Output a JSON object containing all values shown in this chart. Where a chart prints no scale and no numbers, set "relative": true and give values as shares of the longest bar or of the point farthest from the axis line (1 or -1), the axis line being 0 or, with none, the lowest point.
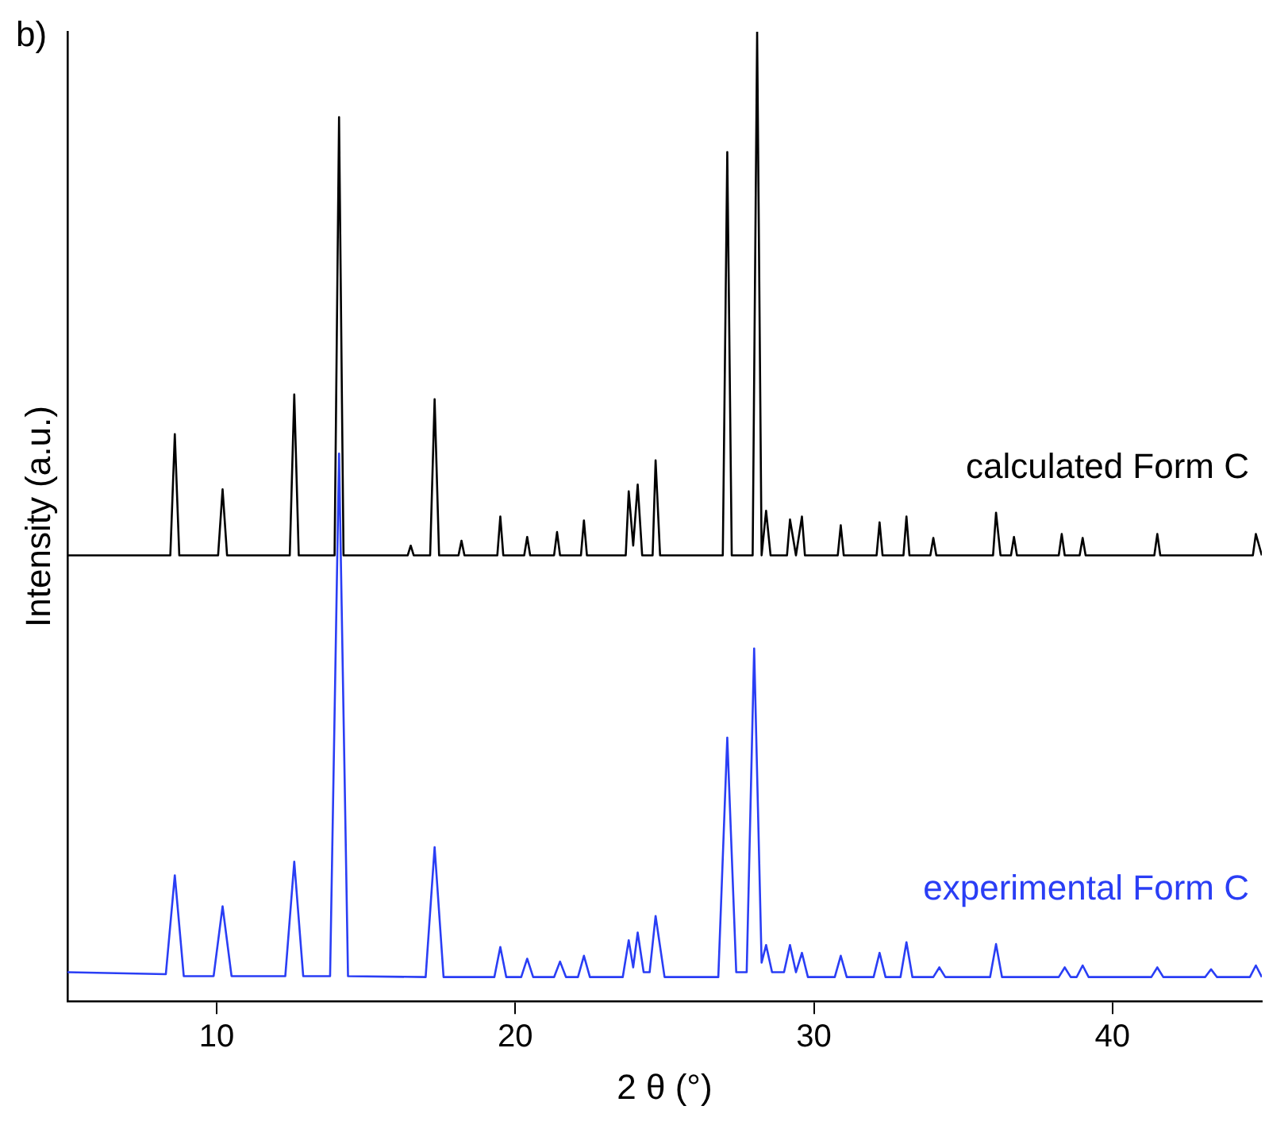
{
  "chart_data": {
    "type": "line",
    "relative": true,
    "xlabel": "2 θ (°)",
    "ylabel": "Intensity (a.u.)",
    "annotations": [
      "b)"
    ],
    "xlim": [
      5,
      45
    ],
    "xticks": [
      10,
      20,
      30,
      40
    ],
    "grid": false,
    "legend": false,
    "marker": "none",
    "line_style": "solid",
    "series": [
      {
        "name": "calculated Form C",
        "color": "#000000",
        "x": [
          5,
          8.45,
          8.6,
          8.75,
          10.05,
          10.2,
          10.35,
          12.45,
          12.6,
          12.75,
          13.95,
          14.1,
          14.25,
          16.4,
          16.5,
          16.6,
          17.15,
          17.3,
          17.45,
          18.1,
          18.2,
          18.3,
          19.4,
          19.5,
          19.6,
          20.3,
          20.4,
          20.5,
          21.3,
          21.4,
          21.5,
          22.2,
          22.3,
          22.4,
          23.7,
          23.8,
          23.95,
          24.1,
          24.25,
          24.6,
          24.7,
          24.85,
          26.95,
          27.1,
          27.25,
          27.95,
          28.1,
          28.25,
          28.4,
          28.55,
          29.1,
          29.2,
          29.4,
          29.6,
          29.7,
          30.8,
          30.9,
          31,
          32.1,
          32.2,
          32.3,
          33,
          33.1,
          33.2,
          33.9,
          34,
          34.1,
          36,
          36.1,
          36.25,
          36.6,
          36.7,
          36.8,
          38.2,
          38.3,
          38.4,
          38.9,
          39,
          39.1,
          41.4,
          41.5,
          41.6,
          44.7,
          44.8,
          45
        ],
        "values": [
          0.46,
          0.46,
          0.585,
          0.46,
          0.46,
          0.528,
          0.46,
          0.46,
          0.626,
          0.46,
          0.46,
          0.912,
          0.46,
          0.46,
          0.47,
          0.46,
          0.46,
          0.621,
          0.46,
          0.46,
          0.475,
          0.46,
          0.46,
          0.5,
          0.46,
          0.46,
          0.479,
          0.46,
          0.46,
          0.484,
          0.46,
          0.46,
          0.496,
          0.46,
          0.46,
          0.526,
          0.47,
          0.533,
          0.46,
          0.46,
          0.558,
          0.46,
          0.46,
          0.876,
          0.46,
          0.46,
          1,
          0.46,
          0.506,
          0.46,
          0.46,
          0.497,
          0.46,
          0.5,
          0.46,
          0.46,
          0.491,
          0.46,
          0.46,
          0.494,
          0.46,
          0.46,
          0.5,
          0.46,
          0.46,
          0.478,
          0.46,
          0.46,
          0.504,
          0.46,
          0.46,
          0.479,
          0.46,
          0.46,
          0.482,
          0.46,
          0.46,
          0.478,
          0.46,
          0.46,
          0.482,
          0.46,
          0.46,
          0.482,
          0.46
        ]
      },
      {
        "name": "experimental Form C",
        "color": "#2a3ef5",
        "x": [
          5,
          8.3,
          8.6,
          8.9,
          9.9,
          10.2,
          10.5,
          12.3,
          12.6,
          12.9,
          13.8,
          14.1,
          14.4,
          17.0,
          17.3,
          17.6,
          19.3,
          19.5,
          19.7,
          20.2,
          20.4,
          20.6,
          21.3,
          21.5,
          21.7,
          22.1,
          22.3,
          22.5,
          23.6,
          23.8,
          23.95,
          24.1,
          24.3,
          24.5,
          24.7,
          25.0,
          26.8,
          27.1,
          27.4,
          27.75,
          28.0,
          28.25,
          28.4,
          28.6,
          29.0,
          29.2,
          29.4,
          29.6,
          29.8,
          30.7,
          30.9,
          31.1,
          32.0,
          32.2,
          32.4,
          32.9,
          33.1,
          33.3,
          34.0,
          34.2,
          34.4,
          35.9,
          36.1,
          36.3,
          38.2,
          38.4,
          38.6,
          38.8,
          39,
          39.2,
          41.3,
          41.5,
          41.7,
          43.1,
          43.3,
          43.5,
          44.6,
          44.8,
          45
        ],
        "values": [
          0.03,
          0.028,
          0.13,
          0.026,
          0.026,
          0.098,
          0.026,
          0.026,
          0.144,
          0.026,
          0.026,
          0.565,
          0.026,
          0.025,
          0.159,
          0.025,
          0.025,
          0.056,
          0.025,
          0.025,
          0.044,
          0.025,
          0.025,
          0.041,
          0.025,
          0.025,
          0.047,
          0.025,
          0.025,
          0.063,
          0.035,
          0.071,
          0.03,
          0.03,
          0.088,
          0.025,
          0.025,
          0.272,
          0.03,
          0.03,
          0.364,
          0.04,
          0.058,
          0.03,
          0.03,
          0.058,
          0.03,
          0.05,
          0.025,
          0.025,
          0.047,
          0.025,
          0.025,
          0.05,
          0.025,
          0.025,
          0.061,
          0.025,
          0.025,
          0.035,
          0.025,
          0.025,
          0.059,
          0.025,
          0.025,
          0.035,
          0.025,
          0.025,
          0.037,
          0.025,
          0.025,
          0.035,
          0.025,
          0.025,
          0.033,
          0.025,
          0.025,
          0.037,
          0.025
        ]
      }
    ]
  }
}
